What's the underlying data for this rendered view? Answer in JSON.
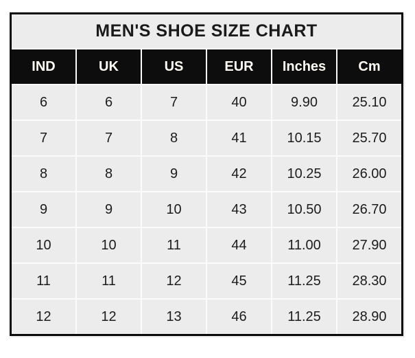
{
  "colors": {
    "page_bg": "#ffffff",
    "border": "#0a0a0a",
    "title_bg": "#ececec",
    "header_bg": "#0d0d0d",
    "header_text": "#fffdf6",
    "cell_bg": "#ececec",
    "cell_text": "#1c1c1c",
    "gridline": "#fbfbfb"
  },
  "chart_data": {
    "type": "table",
    "title": "MEN'S SHOE SIZE CHART",
    "columns": [
      "IND",
      "UK",
      "US",
      "EUR",
      "Inches",
      "Cm"
    ],
    "rows": [
      [
        "6",
        "6",
        "7",
        "40",
        "9.90",
        "25.10"
      ],
      [
        "7",
        "7",
        "8",
        "41",
        "10.15",
        "25.70"
      ],
      [
        "8",
        "8",
        "9",
        "42",
        "10.25",
        "26.00"
      ],
      [
        "9",
        "9",
        "10",
        "43",
        "10.50",
        "26.70"
      ],
      [
        "10",
        "10",
        "11",
        "44",
        "11.00",
        "27.90"
      ],
      [
        "11",
        "11",
        "12",
        "45",
        "11.25",
        "28.30"
      ],
      [
        "12",
        "12",
        "13",
        "46",
        "11.25",
        "28.90"
      ]
    ]
  }
}
